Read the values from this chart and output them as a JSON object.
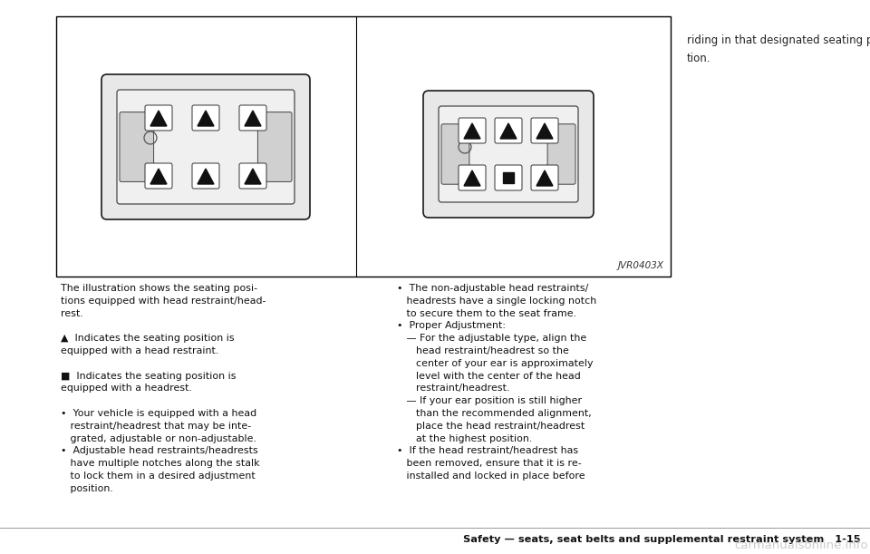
{
  "bg_color": "#ffffff",
  "code_text": "JVR0403X",
  "footer_text": "Safety — seats, seat belts and supplemental restraint system   1-15",
  "watermark_text": "carmanualsonline.info",
  "top_right_text": "riding in that designated seating posi-\ntion.",
  "left_col_text": "The illustration shows the seating posi-\ntions equipped with head restraint/head-\nrest.\n\n▲  Indicates the seating position is\nequipped with a head restraint.\n\n■  Indicates the seating position is\nequipped with a headrest.\n\n•  Your vehicle is equipped with a head\n   restraint/headrest that may be inte-\n   grated, adjustable or non-adjustable.\n•  Adjustable head restraints/headrests\n   have multiple notches along the stalk\n   to lock them in a desired adjustment\n   position.",
  "right_col_text": "•  The non-adjustable head restraints/\n   headrests have a single locking notch\n   to secure them to the seat frame.\n•  Proper Adjustment:\n   — For the adjustable type, align the\n      head restraint/headrest so the\n      center of your ear is approximately\n      level with the center of the head\n      restraint/headrest.\n   — If your ear position is still higher\n      than the recommended alignment,\n      place the head restraint/headrest\n      at the highest position.\n•  If the head restraint/headrest has\n   been removed, ensure that it is re-\n   installed and locked in place before"
}
